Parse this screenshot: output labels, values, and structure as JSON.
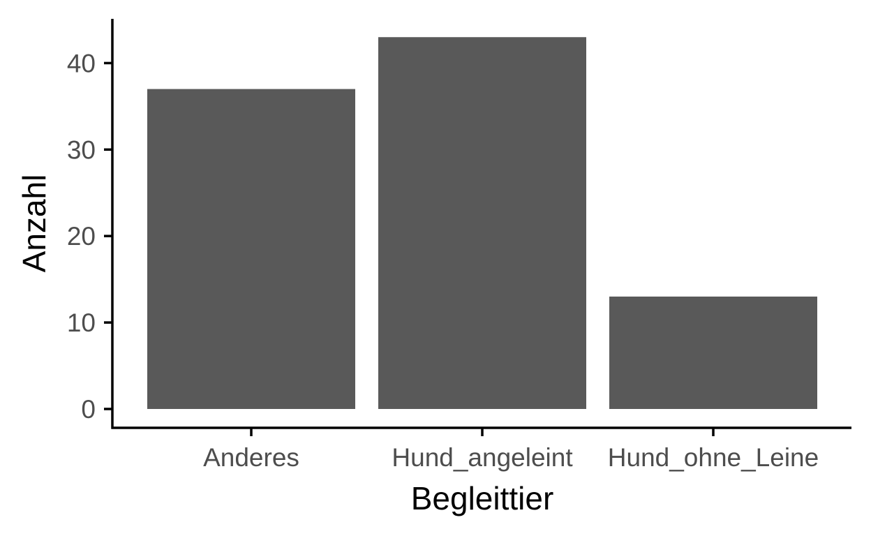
{
  "chart_data": {
    "type": "bar",
    "categories": [
      "Anderes",
      "Hund_angeleint",
      "Hund_ohne_Leine"
    ],
    "values": [
      37,
      43,
      13
    ],
    "xlabel": "Begleittier",
    "ylabel": "Anzahl",
    "ylim": [
      0,
      45
    ],
    "yticks": [
      0,
      10,
      20,
      30,
      40
    ],
    "bar_color": "#595959",
    "axis_color": "#000000",
    "tick_label_color": "#4d4d4d",
    "grid": false,
    "legend": "none"
  }
}
